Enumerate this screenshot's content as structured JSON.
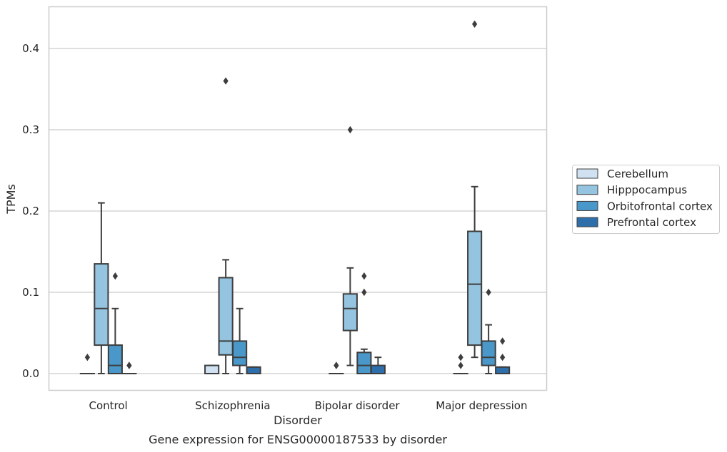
{
  "chart_data": {
    "type": "box",
    "xlabel": "Disorder",
    "ylabel": "TPMs",
    "caption": "Gene expression for ENSG00000187533 by disorder",
    "ylim": [
      -0.02,
      0.455
    ],
    "yticks": [
      0.0,
      0.1,
      0.2,
      0.3,
      0.4
    ],
    "ytick_labels": [
      "0.0",
      "0.1",
      "0.2",
      "0.3",
      "0.4"
    ],
    "grid": "horizontal",
    "legend_position": "right",
    "categories": [
      "Control",
      "Schizophrenia",
      "Bipolar disorder",
      "Major depression"
    ],
    "series": [
      {
        "name": "Cerebellum",
        "color": "#d0e1f2",
        "boxes": [
          {
            "q1": 0.0,
            "median": 0.0,
            "q3": 0.0,
            "whisker_low": 0.0,
            "whisker_high": 0.0,
            "outliers": [
              0.02
            ]
          },
          {
            "q1": 0.0,
            "median": 0.0,
            "q3": 0.01,
            "whisker_low": 0.0,
            "whisker_high": 0.01,
            "outliers": []
          },
          {
            "q1": 0.0,
            "median": 0.0,
            "q3": 0.0,
            "whisker_low": 0.0,
            "whisker_high": 0.0,
            "outliers": [
              0.01,
              0.01
            ]
          },
          {
            "q1": 0.0,
            "median": 0.0,
            "q3": 0.0,
            "whisker_low": 0.0,
            "whisker_high": 0.0,
            "outliers": [
              0.02,
              0.01
            ]
          }
        ]
      },
      {
        "name": "Hipppocampus",
        "color": "#94c4df",
        "boxes": [
          {
            "q1": 0.035,
            "median": 0.08,
            "q3": 0.135,
            "whisker_low": 0.0,
            "whisker_high": 0.21,
            "outliers": []
          },
          {
            "q1": 0.023,
            "median": 0.04,
            "q3": 0.118,
            "whisker_low": 0.0,
            "whisker_high": 0.14,
            "outliers": [
              0.36
            ]
          },
          {
            "q1": 0.053,
            "median": 0.08,
            "q3": 0.098,
            "whisker_low": 0.01,
            "whisker_high": 0.13,
            "outliers": [
              0.3
            ]
          },
          {
            "q1": 0.035,
            "median": 0.11,
            "q3": 0.175,
            "whisker_low": 0.02,
            "whisker_high": 0.23,
            "outliers": [
              0.43
            ]
          }
        ]
      },
      {
        "name": "Orbitofrontal cortex",
        "color": "#4a98c9",
        "boxes": [
          {
            "q1": 0.0,
            "median": 0.01,
            "q3": 0.035,
            "whisker_low": 0.0,
            "whisker_high": 0.08,
            "outliers": [
              0.12
            ]
          },
          {
            "q1": 0.01,
            "median": 0.02,
            "q3": 0.04,
            "whisker_low": 0.0,
            "whisker_high": 0.08,
            "outliers": []
          },
          {
            "q1": 0.0,
            "median": 0.01,
            "q3": 0.026,
            "whisker_low": 0.0,
            "whisker_high": 0.03,
            "outliers": [
              0.12,
              0.1
            ]
          },
          {
            "q1": 0.01,
            "median": 0.02,
            "q3": 0.04,
            "whisker_low": 0.0,
            "whisker_high": 0.06,
            "outliers": [
              0.1
            ]
          }
        ]
      },
      {
        "name": "Prefrontal cortex",
        "color": "#2e6fab",
        "boxes": [
          {
            "q1": 0.0,
            "median": 0.0,
            "q3": 0.0,
            "whisker_low": 0.0,
            "whisker_high": 0.0,
            "outliers": [
              0.01,
              0.01
            ]
          },
          {
            "q1": 0.0,
            "median": 0.0,
            "q3": 0.008,
            "whisker_low": 0.0,
            "whisker_high": 0.008,
            "outliers": []
          },
          {
            "q1": 0.0,
            "median": 0.0,
            "q3": 0.01,
            "whisker_low": 0.0,
            "whisker_high": 0.02,
            "outliers": []
          },
          {
            "q1": 0.0,
            "median": 0.0,
            "q3": 0.008,
            "whisker_low": 0.0,
            "whisker_high": 0.008,
            "outliers": [
              0.04,
              0.02
            ]
          }
        ]
      }
    ]
  }
}
